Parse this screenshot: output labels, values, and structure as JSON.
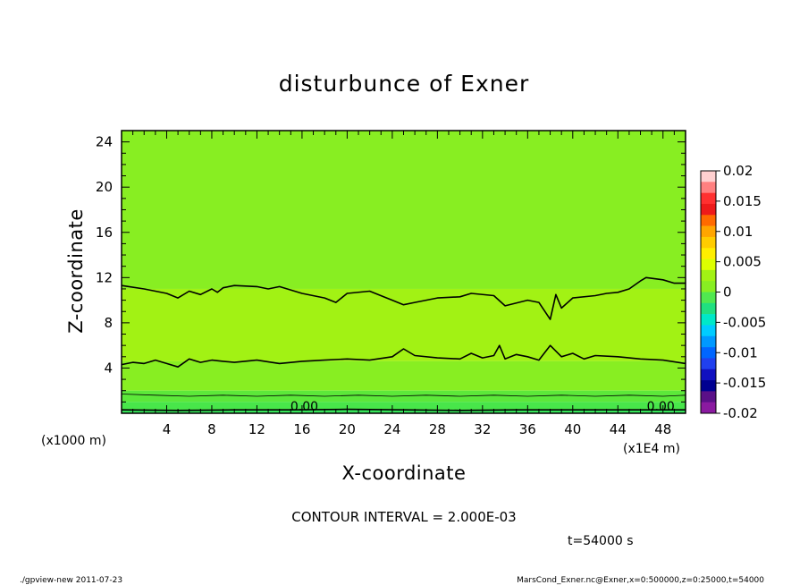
{
  "chart_data": {
    "type": "contour",
    "title": "disturbunce of Exner",
    "xlabel": "X-coordinate",
    "ylabel": "Z-coordinate",
    "x_unit_left": "(x1000 m)",
    "x_unit_right": "(x1E4 m)",
    "xlim": [
      0,
      50
    ],
    "ylim": [
      0,
      25
    ],
    "xticks": [
      4,
      8,
      12,
      16,
      20,
      24,
      28,
      32,
      36,
      40,
      44,
      48
    ],
    "yticks": [
      4,
      8,
      12,
      16,
      20,
      24
    ],
    "contour_interval_text": "CONTOUR INTERVAL = 2.000E-03",
    "time_text": "t=54000 s",
    "contour_labels": [
      {
        "text": "0.00",
        "x": 16.2,
        "y": 0.3
      },
      {
        "text": "0.00",
        "x": 47.8,
        "y": 0.3
      }
    ],
    "fill_bands": [
      {
        "z_from": 11.0,
        "z_to": 25,
        "color": "#88ee22"
      },
      {
        "z_from": 4.6,
        "z_to": 11.0,
        "color": "#a2f214"
      },
      {
        "z_from": 2.0,
        "z_to": 4.6,
        "color": "#88ee22"
      },
      {
        "z_from": 1.0,
        "z_to": 2.0,
        "color": "#5ce83a"
      },
      {
        "z_from": 0.3,
        "z_to": 1.0,
        "color": "#48e64a"
      },
      {
        "z_from": 0,
        "z_to": 0.3,
        "color": "#36e45a"
      }
    ],
    "contours": [
      {
        "name": "upper",
        "points": [
          [
            0,
            11.3
          ],
          [
            2,
            11
          ],
          [
            4,
            10.6
          ],
          [
            5,
            10.2
          ],
          [
            6,
            10.8
          ],
          [
            7,
            10.5
          ],
          [
            8,
            11
          ],
          [
            8.5,
            10.7
          ],
          [
            9,
            11.1
          ],
          [
            10,
            11.3
          ],
          [
            12,
            11.2
          ],
          [
            13,
            11
          ],
          [
            14,
            11.2
          ],
          [
            16,
            10.6
          ],
          [
            18,
            10.2
          ],
          [
            19,
            9.8
          ],
          [
            20,
            10.6
          ],
          [
            22,
            10.8
          ],
          [
            24,
            10
          ],
          [
            25,
            9.6
          ],
          [
            26,
            9.8
          ],
          [
            28,
            10.2
          ],
          [
            30,
            10.3
          ],
          [
            31,
            10.6
          ],
          [
            33,
            10.4
          ],
          [
            34,
            9.5
          ],
          [
            36,
            10
          ],
          [
            37,
            9.8
          ],
          [
            38,
            8.3
          ],
          [
            38.5,
            10.5
          ],
          [
            39,
            9.3
          ],
          [
            40,
            10.2
          ],
          [
            42,
            10.4
          ],
          [
            43,
            10.6
          ],
          [
            44,
            10.7
          ],
          [
            45,
            11
          ],
          [
            46,
            11.7
          ],
          [
            46.5,
            12
          ],
          [
            48,
            11.8
          ],
          [
            49,
            11.5
          ],
          [
            50,
            11.5
          ]
        ]
      },
      {
        "name": "middle",
        "points": [
          [
            0,
            4.3
          ],
          [
            1,
            4.5
          ],
          [
            2,
            4.4
          ],
          [
            3,
            4.7
          ],
          [
            4,
            4.4
          ],
          [
            5,
            4.1
          ],
          [
            6,
            4.8
          ],
          [
            7,
            4.5
          ],
          [
            8,
            4.7
          ],
          [
            9,
            4.6
          ],
          [
            10,
            4.5
          ],
          [
            12,
            4.7
          ],
          [
            14,
            4.4
          ],
          [
            16,
            4.6
          ],
          [
            18,
            4.7
          ],
          [
            20,
            4.8
          ],
          [
            22,
            4.7
          ],
          [
            24,
            5
          ],
          [
            25,
            5.7
          ],
          [
            26,
            5.1
          ],
          [
            28,
            4.9
          ],
          [
            30,
            4.8
          ],
          [
            31,
            5.3
          ],
          [
            32,
            4.9
          ],
          [
            33,
            5.1
          ],
          [
            33.5,
            6
          ],
          [
            34,
            4.8
          ],
          [
            35,
            5.2
          ],
          [
            36,
            5
          ],
          [
            37,
            4.7
          ],
          [
            38,
            6
          ],
          [
            39,
            5
          ],
          [
            40,
            5.3
          ],
          [
            41,
            4.8
          ],
          [
            42,
            5.1
          ],
          [
            44,
            5
          ],
          [
            46,
            4.8
          ],
          [
            48,
            4.7
          ],
          [
            50,
            4.4
          ]
        ]
      },
      {
        "name": "lower",
        "points": [
          [
            0,
            1.7
          ],
          [
            3,
            1.6
          ],
          [
            6,
            1.5
          ],
          [
            9,
            1.6
          ],
          [
            12,
            1.5
          ],
          [
            15,
            1.6
          ],
          [
            18,
            1.5
          ],
          [
            21,
            1.6
          ],
          [
            24,
            1.5
          ],
          [
            27,
            1.6
          ],
          [
            30,
            1.5
          ],
          [
            33,
            1.6
          ],
          [
            36,
            1.5
          ],
          [
            39,
            1.6
          ],
          [
            42,
            1.5
          ],
          [
            45,
            1.6
          ],
          [
            48,
            1.5
          ],
          [
            50,
            1.6
          ]
        ]
      },
      {
        "name": "zero",
        "points": [
          [
            0,
            0.3
          ],
          [
            5,
            0.25
          ],
          [
            10,
            0.3
          ],
          [
            15,
            0.3
          ],
          [
            20,
            0.35
          ],
          [
            25,
            0.3
          ],
          [
            30,
            0.25
          ],
          [
            35,
            0.3
          ],
          [
            40,
            0.3
          ],
          [
            45,
            0.3
          ],
          [
            50,
            0.3
          ]
        ]
      }
    ],
    "colorbar": {
      "levels": [
        "0.02",
        "0.015",
        "0.01",
        "0.005",
        "0",
        "-0.005",
        "-0.01",
        "-0.015",
        "-0.02"
      ],
      "colors": [
        "#ffd0d0",
        "#ff8080",
        "#ff3030",
        "#ee1a1a",
        "#ff6a00",
        "#ffa500",
        "#ffcc00",
        "#ffee00",
        "#ddff00",
        "#a2f214",
        "#88ee22",
        "#50e850",
        "#20e080",
        "#00e8c8",
        "#00ccff",
        "#0099ff",
        "#0066ff",
        "#2040ee",
        "#1010c0",
        "#000090",
        "#5a1088",
        "#8a1aa0"
      ]
    }
  },
  "footer": {
    "left": "./gpview-new   2011-07-23",
    "right": "MarsCond_Exner.nc@Exner,x=0:500000,z=0:25000,t=54000"
  }
}
